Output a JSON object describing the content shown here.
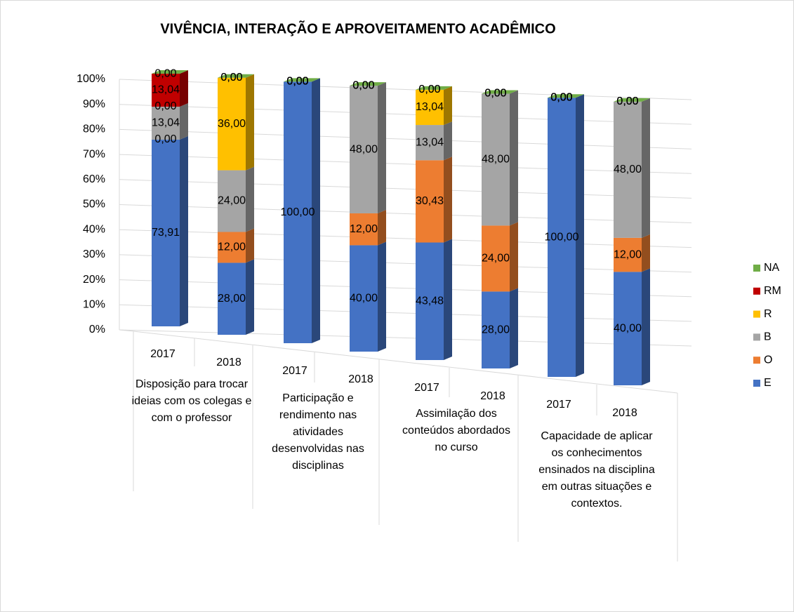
{
  "chart_data": {
    "type": "bar3d_stacked_percent",
    "title": "VIVÊNCIA, INTERAÇÃO E APROVEITAMENTO ACADÊMICO",
    "categories": [
      "2017",
      "2018",
      "2017",
      "2018",
      "2017",
      "2018",
      "2017",
      "2018"
    ],
    "groups": [
      "Disposição para trocar ideias com os colegas e com o professor",
      "Participação e rendimento nas atividades desenvolvidas nas disciplinas",
      "Assimilação dos conteúdos abordados no curso",
      "Capacidade de aplicar os conhecimentos ensinados na disciplina em outras situações e contextos."
    ],
    "series": [
      {
        "name": "E",
        "color": "#4472c4",
        "values": [
          73.91,
          28,
          100,
          40,
          43.48,
          28,
          100,
          40
        ],
        "value_labels": [
          "73,91",
          "28,00",
          "100,00",
          "40,00",
          "43,48",
          "28,00",
          "100,00",
          "40,00"
        ]
      },
      {
        "name": "O",
        "color": "#ed7d31",
        "values": [
          0,
          12,
          0,
          12,
          30.43,
          24,
          0,
          12
        ],
        "value_labels": [
          "0,00",
          "12,00",
          "0,00",
          "12,00",
          "30,43",
          "24,00",
          "0,00",
          "12,00"
        ]
      },
      {
        "name": "B",
        "color": "#a5a5a5",
        "values": [
          13.04,
          24,
          0,
          48,
          13.04,
          48,
          0,
          48
        ],
        "value_labels": [
          "13,04",
          "24,00",
          "0,00",
          "48,00",
          "13,04",
          "48,00",
          "0,00",
          "48,00"
        ]
      },
      {
        "name": "R",
        "color": "#ffc000",
        "values": [
          0,
          36,
          0,
          0,
          13.04,
          0,
          0,
          0
        ],
        "value_labels": [
          "0,00",
          "36,00",
          "0,00",
          "0,00",
          "13,04",
          "0,00",
          "0,00",
          "0,00"
        ]
      },
      {
        "name": "RM",
        "color": "#c00000",
        "values": [
          13.04,
          0,
          0,
          0,
          0,
          0,
          0,
          0
        ],
        "value_labels": [
          "13,04",
          "0,00",
          "0,00",
          "0,00",
          "0,00",
          "0,00",
          "0,00",
          "0,00"
        ]
      },
      {
        "name": "NA",
        "color": "#70ad47",
        "values": [
          0,
          0,
          0,
          0,
          0,
          0,
          0,
          0
        ],
        "value_labels": [
          "0,00",
          "0,00",
          "0,00",
          "0,00",
          "0,00",
          "0,00",
          "0,00",
          "0,00"
        ]
      }
    ],
    "ylim": [
      0,
      100
    ],
    "yticks": [
      {
        "value": 0,
        "label": "0%"
      },
      {
        "value": 10,
        "label": "10%"
      },
      {
        "value": 20,
        "label": "20%"
      },
      {
        "value": 30,
        "label": "30%"
      },
      {
        "value": 40,
        "label": "40%"
      },
      {
        "value": 50,
        "label": "50%"
      },
      {
        "value": 60,
        "label": "60%"
      },
      {
        "value": 70,
        "label": "70%"
      },
      {
        "value": 80,
        "label": "80%"
      },
      {
        "value": 90,
        "label": "90%"
      },
      {
        "value": 100,
        "label": "100%"
      }
    ],
    "grid": true,
    "legend": "right"
  }
}
